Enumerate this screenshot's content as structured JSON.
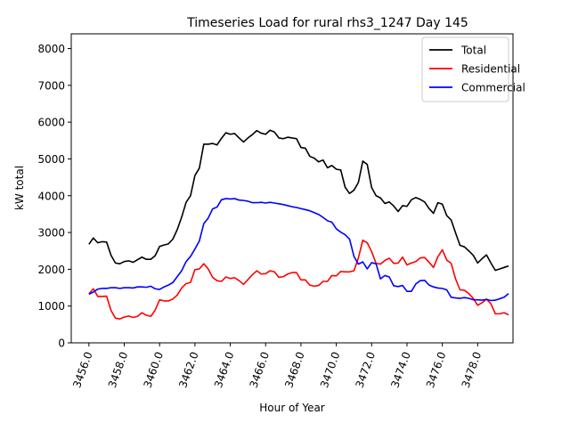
{
  "chart_data": {
    "type": "line",
    "title": "Timeseries Load for rural rhs3_1247  Day 145",
    "xlabel": "Hour of Year",
    "ylabel": "kW total",
    "xlim": [
      3455.0,
      3480.0
    ],
    "ylim": [
      0,
      8400
    ],
    "xticks": [
      3456,
      3458,
      3460,
      3462,
      3464,
      3466,
      3468,
      3470,
      3472,
      3474,
      3476,
      3478
    ],
    "xtick_labels": [
      "3456.0",
      "3458.0",
      "3460.0",
      "3462.0",
      "3464.0",
      "3466.0",
      "3468.0",
      "3470.0",
      "3472.0",
      "3474.0",
      "3476.0",
      "3478.0"
    ],
    "yticks": [
      0,
      1000,
      2000,
      3000,
      4000,
      5000,
      6000,
      7000,
      8000
    ],
    "ytick_labels": [
      "0",
      "1000",
      "2000",
      "3000",
      "4000",
      "5000",
      "6000",
      "7000",
      "8000"
    ],
    "legend_position": "top-right",
    "x_start": 3456.0,
    "x_step": 0.25,
    "series": [
      {
        "name": "Total",
        "color": "#000000",
        "values": [
          2680,
          2850,
          2720,
          2750,
          2740,
          2380,
          2170,
          2150,
          2210,
          2230,
          2190,
          2260,
          2330,
          2270,
          2270,
          2370,
          2620,
          2660,
          2690,
          2820,
          3080,
          3420,
          3820,
          4000,
          4550,
          4750,
          5400,
          5400,
          5420,
          5380,
          5560,
          5710,
          5670,
          5690,
          5570,
          5460,
          5570,
          5660,
          5770,
          5700,
          5670,
          5780,
          5730,
          5570,
          5550,
          5590,
          5570,
          5550,
          5310,
          5290,
          5070,
          5020,
          4920,
          4970,
          4760,
          4820,
          4720,
          4700,
          4230,
          4060,
          4150,
          4360,
          4940,
          4850,
          4220,
          4000,
          3940,
          3790,
          3830,
          3720,
          3570,
          3730,
          3710,
          3890,
          3950,
          3900,
          3830,
          3650,
          3520,
          3810,
          3770,
          3460,
          3340,
          2990,
          2650,
          2610,
          2500,
          2380,
          2170,
          2290,
          2390,
          2170,
          1970,
          2010,
          2050,
          2090
        ]
      },
      {
        "name": "Residential",
        "color": "#ff0000",
        "values": [
          1330,
          1470,
          1260,
          1260,
          1270,
          880,
          670,
          650,
          700,
          730,
          690,
          720,
          820,
          750,
          720,
          890,
          1170,
          1140,
          1140,
          1190,
          1300,
          1490,
          1610,
          1640,
          1990,
          2010,
          2150,
          2010,
          1780,
          1690,
          1670,
          1790,
          1750,
          1770,
          1690,
          1590,
          1720,
          1850,
          1960,
          1870,
          1880,
          1960,
          1930,
          1780,
          1800,
          1870,
          1910,
          1910,
          1710,
          1710,
          1570,
          1540,
          1560,
          1670,
          1670,
          1830,
          1820,
          1940,
          1930,
          1930,
          1960,
          2310,
          2790,
          2720,
          2480,
          2160,
          2140,
          2240,
          2300,
          2160,
          2170,
          2330,
          2120,
          2170,
          2210,
          2310,
          2320,
          2190,
          2050,
          2340,
          2530,
          2250,
          2160,
          1740,
          1440,
          1430,
          1340,
          1210,
          1020,
          1090,
          1190,
          1060,
          790,
          790,
          820,
          760
        ]
      },
      {
        "name": "Commercial",
        "color": "#0000ff",
        "values": [
          1320,
          1380,
          1460,
          1480,
          1480,
          1500,
          1500,
          1480,
          1500,
          1500,
          1490,
          1520,
          1520,
          1510,
          1540,
          1470,
          1450,
          1520,
          1570,
          1640,
          1800,
          1960,
          2210,
          2350,
          2550,
          2770,
          3240,
          3390,
          3640,
          3690,
          3890,
          3920,
          3910,
          3920,
          3880,
          3870,
          3850,
          3810,
          3810,
          3820,
          3800,
          3820,
          3800,
          3780,
          3760,
          3730,
          3700,
          3680,
          3650,
          3620,
          3590,
          3540,
          3490,
          3410,
          3320,
          3280,
          3100,
          3010,
          2940,
          2820,
          2350,
          2140,
          2200,
          2010,
          2180,
          2150,
          1740,
          1830,
          1790,
          1550,
          1530,
          1560,
          1400,
          1400,
          1600,
          1690,
          1700,
          1570,
          1520,
          1490,
          1480,
          1440,
          1240,
          1220,
          1210,
          1230,
          1210,
          1170,
          1170,
          1160,
          1180,
          1150,
          1160,
          1200,
          1240,
          1340
        ]
      }
    ]
  }
}
